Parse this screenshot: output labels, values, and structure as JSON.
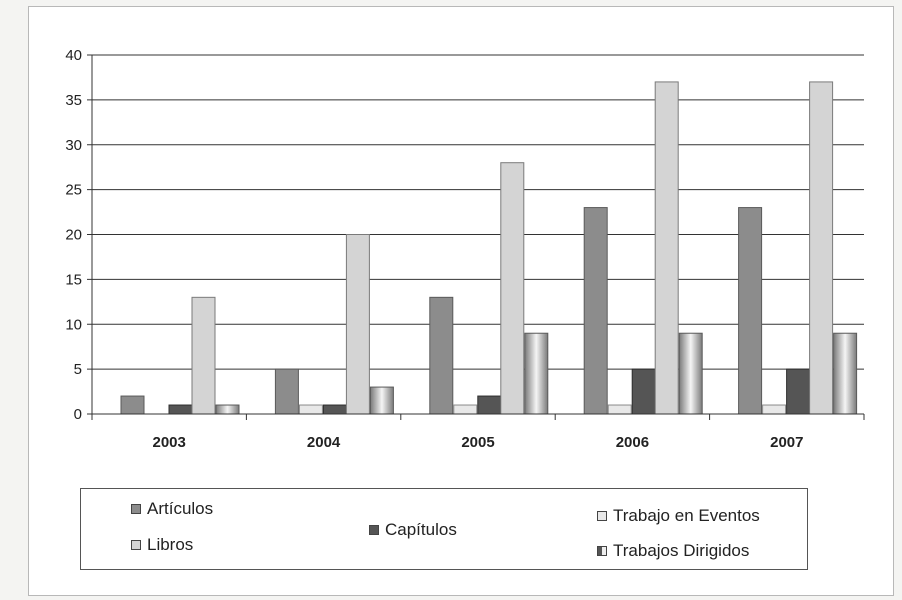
{
  "chart_data": {
    "type": "bar",
    "categories": [
      "2003",
      "2004",
      "2005",
      "2006",
      "2007"
    ],
    "series": [
      {
        "name": "Artículos",
        "values": [
          2,
          5,
          13,
          23,
          23
        ],
        "color": "#8c8c8c"
      },
      {
        "name": "Trabajo en Eventos",
        "values": [
          0,
          1,
          1,
          1,
          1
        ],
        "color": "#e8e8e8"
      },
      {
        "name": "Capítulos",
        "values": [
          1,
          1,
          2,
          5,
          5
        ],
        "color": "#555555"
      },
      {
        "name": "Libros",
        "values": [
          13,
          20,
          28,
          37,
          37
        ],
        "color": "#d4d4d4"
      },
      {
        "name": "Trabajos Dirigidos",
        "values": [
          1,
          3,
          9,
          9,
          9
        ],
        "color": "#9a9a9a"
      }
    ],
    "ylim": [
      0,
      40
    ],
    "yticks": [
      0,
      5,
      10,
      15,
      20,
      25,
      30,
      35,
      40
    ],
    "grid": true,
    "legend_position": "bottom"
  }
}
